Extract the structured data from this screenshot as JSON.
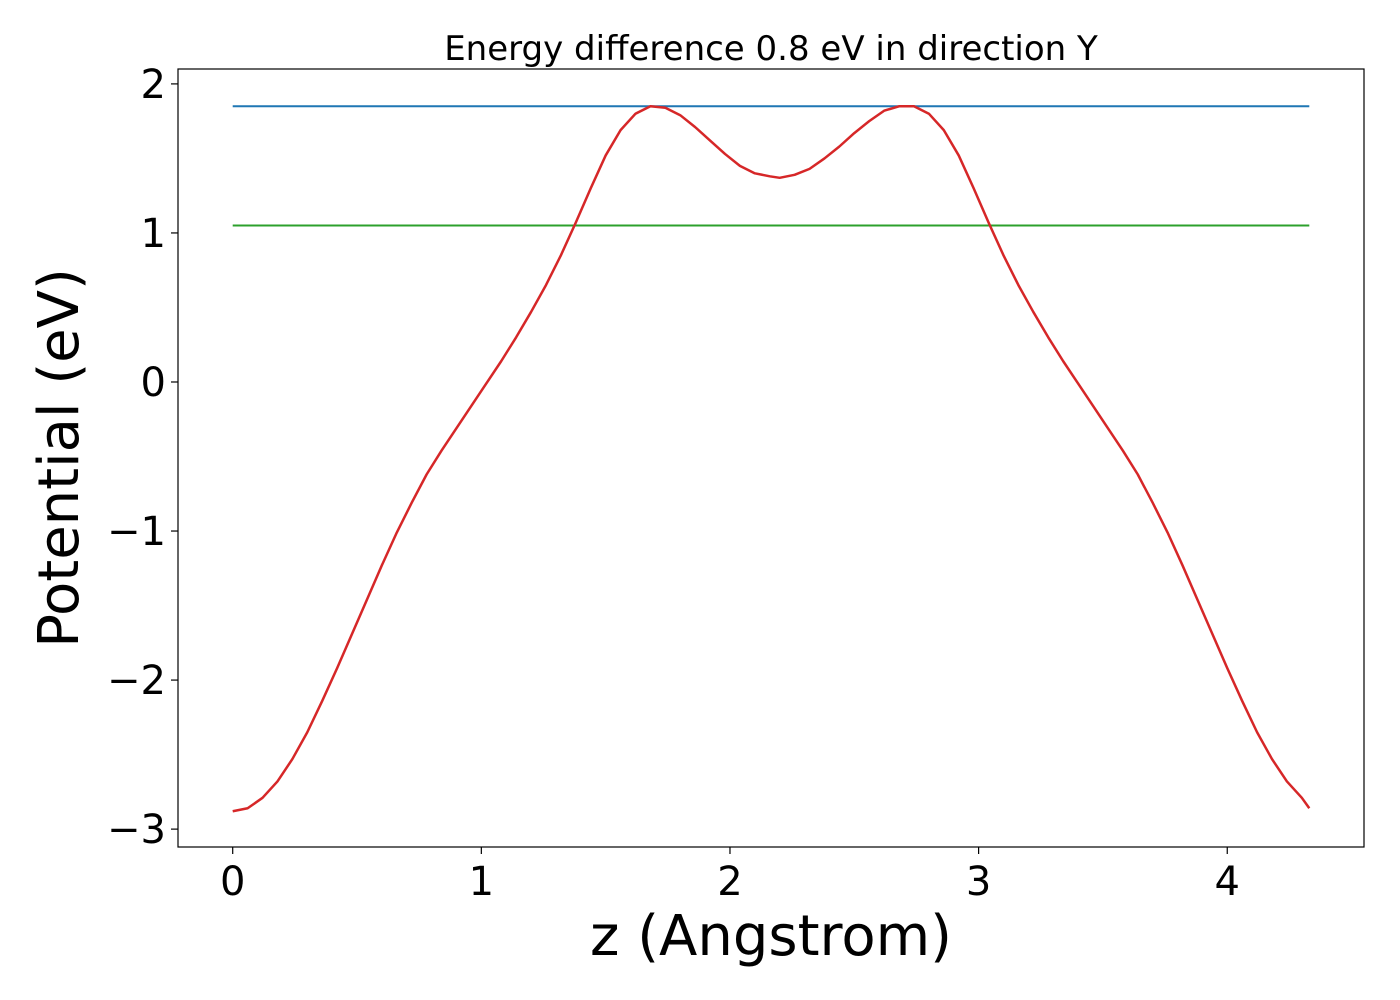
{
  "chart_data": {
    "type": "line",
    "title": "Energy difference 0.8 eV in direction Y",
    "xlabel": "z (Angstrom)",
    "ylabel": "Potential (eV)",
    "xlim": [
      -0.22,
      4.55
    ],
    "ylim": [
      -3.12,
      2.1
    ],
    "xticks": [
      0,
      1,
      2,
      3,
      4
    ],
    "xtick_labels": [
      "0",
      "1",
      "2",
      "3",
      "4"
    ],
    "yticks": [
      -3,
      -2,
      -1,
      0,
      1,
      2
    ],
    "ytick_labels": [
      "−3",
      "−2",
      "−1",
      "0",
      "1",
      "2"
    ],
    "grid": false,
    "legend": "none",
    "series": [
      {
        "color": "#d62728",
        "x": [
          0,
          0.06,
          0.12,
          0.18,
          0.24,
          0.3,
          0.36,
          0.42,
          0.48,
          0.54,
          0.6,
          0.66,
          0.72,
          0.78,
          0.84,
          0.9,
          0.96,
          1.02,
          1.08,
          1.14,
          1.2,
          1.26,
          1.32,
          1.38,
          1.44,
          1.5,
          1.56,
          1.62,
          1.68,
          1.74,
          1.8,
          1.86,
          1.92,
          1.98,
          2.04,
          2.1,
          2.16,
          2.2,
          2.26,
          2.32,
          2.38,
          2.44,
          2.5,
          2.56,
          2.62,
          2.68,
          2.74,
          2.8,
          2.86,
          2.92,
          2.98,
          3.04,
          3.1,
          3.16,
          3.22,
          3.28,
          3.34,
          3.4,
          3.46,
          3.52,
          3.58,
          3.64,
          3.7,
          3.76,
          3.82,
          3.88,
          3.94,
          4.0,
          4.06,
          4.12,
          4.18,
          4.24,
          4.3,
          4.33
        ],
        "y": [
          -2.88,
          -2.86,
          -2.79,
          -2.68,
          -2.53,
          -2.35,
          -2.14,
          -1.92,
          -1.69,
          -1.46,
          -1.23,
          -1.01,
          -0.81,
          -0.62,
          -0.46,
          -0.31,
          -0.16,
          -0.01,
          0.14,
          0.3,
          0.47,
          0.65,
          0.85,
          1.07,
          1.3,
          1.52,
          1.69,
          1.8,
          1.85,
          1.84,
          1.79,
          1.71,
          1.62,
          1.53,
          1.45,
          1.4,
          1.38,
          1.37,
          1.39,
          1.43,
          1.5,
          1.58,
          1.67,
          1.75,
          1.82,
          1.85,
          1.85,
          1.8,
          1.69,
          1.52,
          1.3,
          1.07,
          0.85,
          0.65,
          0.47,
          0.3,
          0.14,
          -0.01,
          -0.16,
          -0.31,
          -0.46,
          -0.62,
          -0.81,
          -1.01,
          -1.23,
          -1.46,
          -1.69,
          -1.92,
          -2.14,
          -2.35,
          -2.53,
          -2.68,
          -2.79,
          -2.86
        ]
      },
      {
        "color": "#1f77b4",
        "x": [
          0,
          4.33
        ],
        "y": [
          1.85,
          1.85
        ]
      },
      {
        "color": "#2ca02c",
        "x": [
          0,
          4.33
        ],
        "y": [
          1.05,
          1.05
        ]
      }
    ]
  }
}
